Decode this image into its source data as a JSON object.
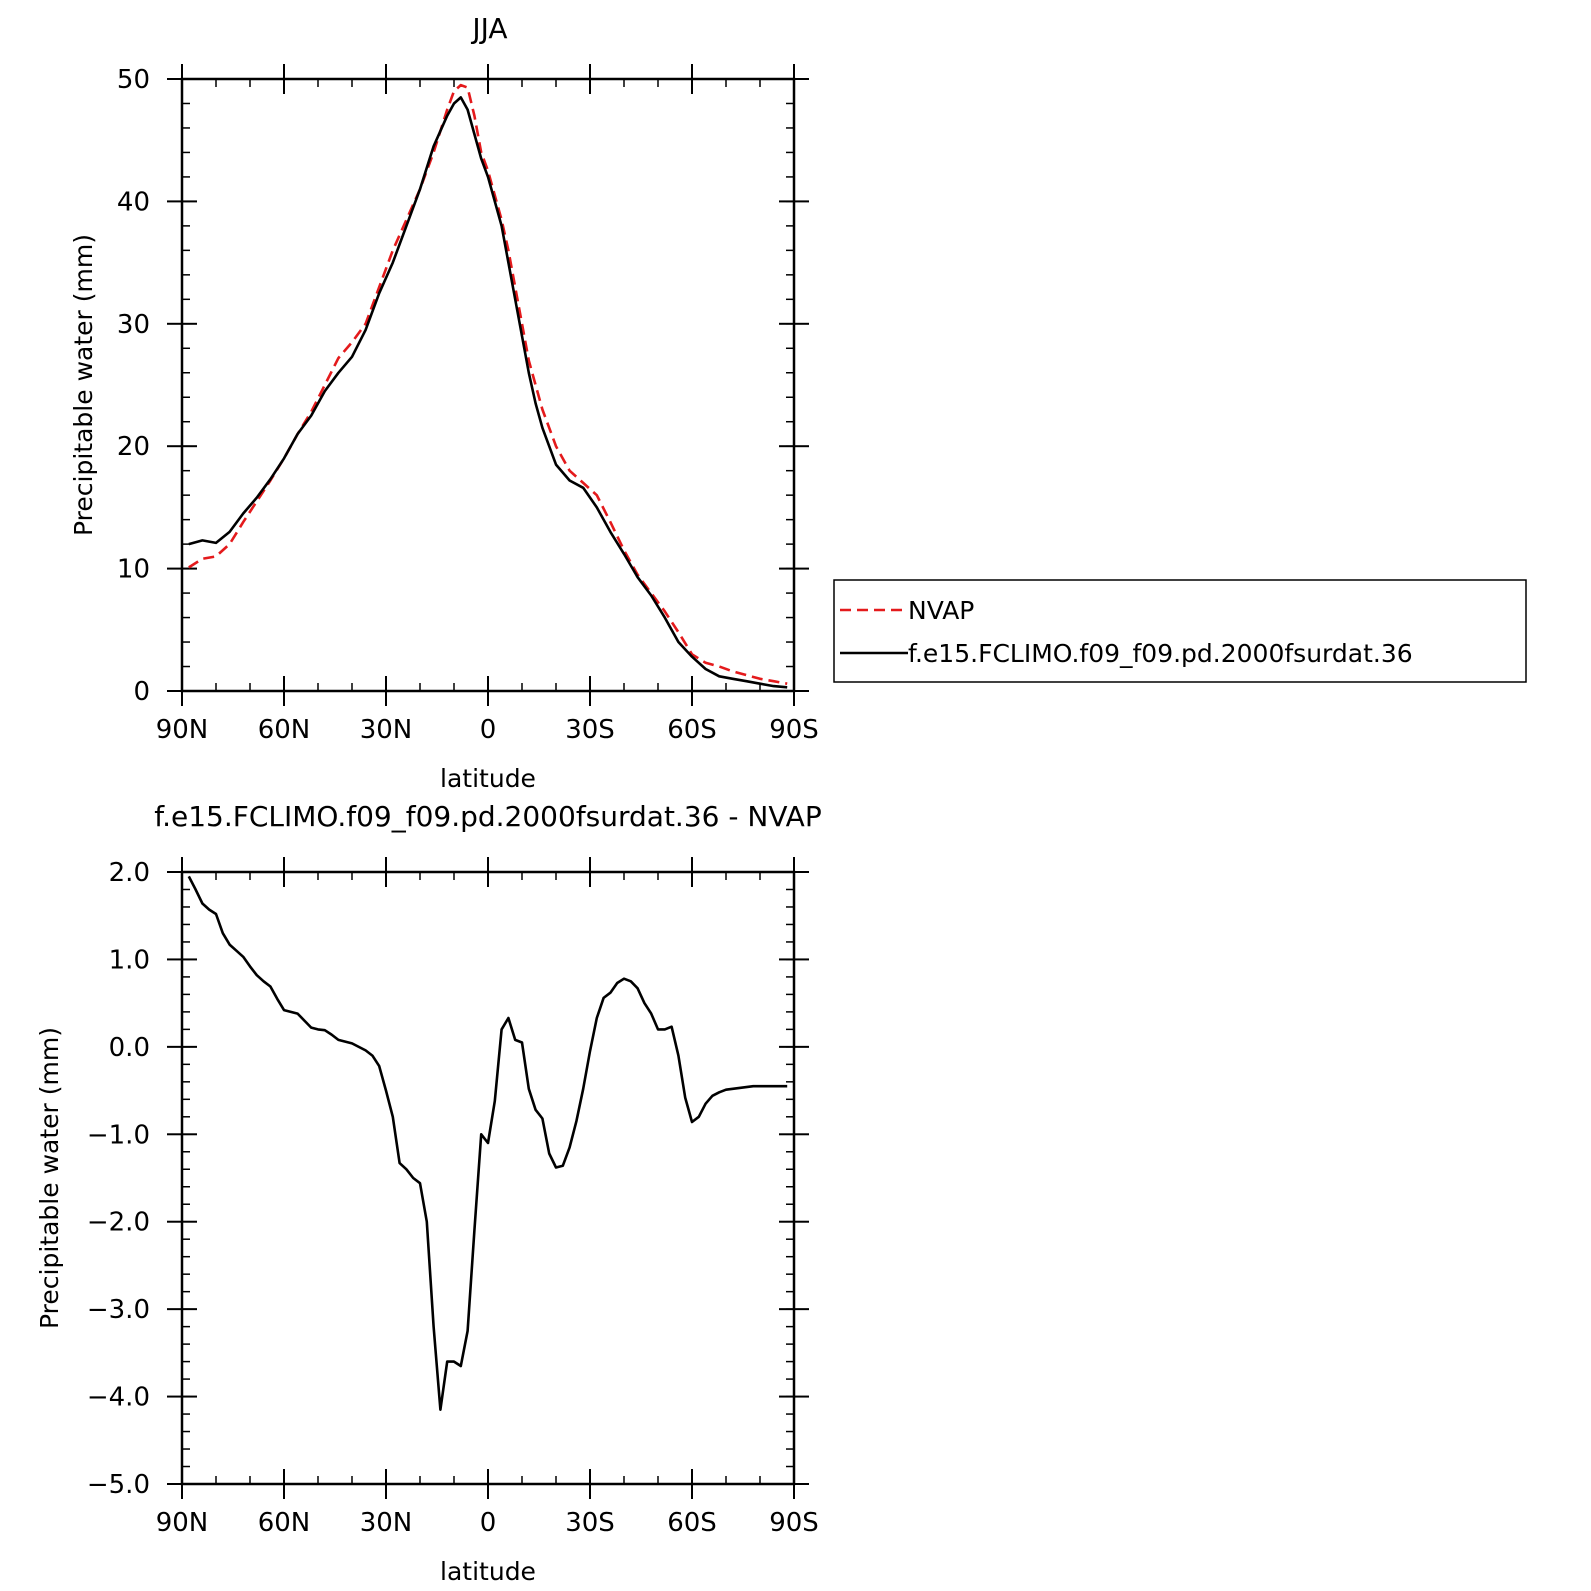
{
  "chart_data": [
    {
      "type": "line",
      "title": "JJA",
      "xlabel": "latitude",
      "ylabel": "Precipitable water (mm)",
      "xlim": [
        -90,
        90
      ],
      "ylim": [
        0,
        50
      ],
      "x_tick_values": [
        -90,
        -60,
        -30,
        0,
        30,
        60,
        90
      ],
      "x_tick_labels": [
        "90N",
        "60N",
        "30N",
        "0",
        "30S",
        "60S",
        "90S"
      ],
      "y_tick_values": [
        0,
        10,
        20,
        30,
        40,
        50
      ],
      "y_tick_labels": [
        "0",
        "10",
        "20",
        "30",
        "40",
        "50"
      ],
      "grid": false,
      "legend": {
        "position": "outside-right"
      },
      "series": [
        {
          "name": "NVAP",
          "color": "#e41a1c",
          "dash": "dashed",
          "x": [
            -88,
            -84,
            -80,
            -76,
            -72,
            -68,
            -64,
            -60,
            -56,
            -52,
            -48,
            -44,
            -40,
            -36,
            -32,
            -28,
            -24,
            -20,
            -16,
            -12,
            -10,
            -8,
            -6,
            -4,
            -2,
            0,
            2,
            4,
            6,
            8,
            10,
            12,
            14,
            16,
            18,
            20,
            24,
            28,
            32,
            36,
            40,
            44,
            48,
            52,
            56,
            60,
            64,
            68,
            72,
            76,
            80,
            84,
            88
          ],
          "y": [
            10.1,
            10.8,
            11.0,
            12.0,
            13.8,
            15.5,
            17.2,
            19.0,
            21.0,
            22.8,
            25.0,
            27.2,
            28.5,
            30.0,
            33.0,
            36.0,
            38.5,
            41.0,
            44.0,
            47.5,
            49.0,
            49.5,
            49.3,
            47.0,
            44.0,
            42.5,
            40.5,
            38.5,
            36.0,
            33.0,
            30.0,
            27.0,
            25.0,
            23.0,
            21.5,
            20.0,
            18.0,
            17.0,
            16.0,
            13.8,
            11.5,
            9.5,
            8.0,
            6.5,
            4.8,
            3.0,
            2.3,
            2.0,
            1.6,
            1.3,
            1.0,
            0.8,
            0.6
          ]
        },
        {
          "name": "f.e15.FCLIMO.f09_f09.pd.2000fsurdat.36",
          "color": "#000000",
          "dash": "solid",
          "x": [
            -88,
            -84,
            -80,
            -76,
            -72,
            -68,
            -64,
            -60,
            -56,
            -52,
            -48,
            -44,
            -40,
            -36,
            -32,
            -28,
            -24,
            -20,
            -16,
            -12,
            -10,
            -8,
            -6,
            -4,
            -2,
            0,
            2,
            4,
            6,
            8,
            10,
            12,
            14,
            16,
            18,
            20,
            24,
            28,
            32,
            36,
            40,
            44,
            48,
            52,
            56,
            60,
            64,
            68,
            72,
            76,
            80,
            84,
            88
          ],
          "y": [
            12.0,
            12.3,
            12.1,
            13.0,
            14.5,
            15.8,
            17.3,
            19.0,
            21.0,
            22.5,
            24.5,
            26.0,
            27.3,
            29.5,
            32.5,
            35.0,
            38.0,
            41.0,
            44.5,
            47.0,
            48.0,
            48.5,
            47.5,
            45.5,
            43.5,
            42.0,
            40.0,
            38.0,
            35.0,
            32.0,
            29.0,
            26.0,
            23.5,
            21.5,
            20.0,
            18.5,
            17.2,
            16.6,
            15.0,
            13.0,
            11.2,
            9.3,
            7.8,
            6.0,
            4.0,
            2.8,
            1.8,
            1.2,
            1.0,
            0.8,
            0.6,
            0.4,
            0.3
          ]
        }
      ]
    },
    {
      "type": "line",
      "title": "f.e15.FCLIMO.f09_f09.pd.2000fsurdat.36 - NVAP",
      "xlabel": "latitude",
      "ylabel": "Precipitable water (mm)",
      "xlim": [
        -90,
        90
      ],
      "ylim": [
        -5.0,
        2.0
      ],
      "x_tick_values": [
        -90,
        -60,
        -30,
        0,
        30,
        60,
        90
      ],
      "x_tick_labels": [
        "90N",
        "60N",
        "30N",
        "0",
        "30S",
        "60S",
        "90S"
      ],
      "y_tick_values": [
        -5.0,
        -4.0,
        -3.0,
        -2.0,
        -1.0,
        0.0,
        1.0,
        2.0
      ],
      "y_tick_labels": [
        "−5.0",
        "−4.0",
        "−3.0",
        "−2.0",
        "−1.0",
        "0.0",
        "1.0",
        "2.0"
      ],
      "grid": false,
      "series": [
        {
          "color": "#000000",
          "dash": "solid",
          "x": [
            -88,
            -86,
            -84,
            -82,
            -80,
            -78,
            -76,
            -74,
            -72,
            -70,
            -68,
            -66,
            -64,
            -62,
            -60,
            -58,
            -56,
            -54,
            -52,
            -50,
            -48,
            -46,
            -44,
            -42,
            -40,
            -38,
            -36,
            -34,
            -32,
            -30,
            -28,
            -26,
            -24,
            -22,
            -20,
            -18,
            -16,
            -14,
            -12,
            -10,
            -8,
            -6,
            -4,
            -2,
            0,
            2,
            4,
            6,
            8,
            10,
            12,
            14,
            16,
            18,
            20,
            22,
            24,
            26,
            28,
            30,
            32,
            34,
            36,
            38,
            40,
            42,
            44,
            46,
            48,
            50,
            52,
            54,
            56,
            58,
            60,
            62,
            64,
            66,
            68,
            70,
            72,
            74,
            76,
            78,
            80,
            82,
            84,
            86,
            88
          ],
          "y": [
            1.95,
            1.8,
            1.64,
            1.57,
            1.52,
            1.3,
            1.17,
            1.1,
            1.03,
            0.92,
            0.82,
            0.75,
            0.69,
            0.55,
            0.42,
            0.4,
            0.38,
            0.3,
            0.22,
            0.2,
            0.19,
            0.14,
            0.08,
            0.06,
            0.04,
            0.0,
            -0.04,
            -0.1,
            -0.22,
            -0.5,
            -0.8,
            -1.33,
            -1.4,
            -1.5,
            -1.56,
            -2.0,
            -3.2,
            -4.15,
            -3.6,
            -3.6,
            -3.65,
            -3.25,
            -2.1,
            -1.0,
            -1.1,
            -0.62,
            0.2,
            0.33,
            0.08,
            0.05,
            -0.48,
            -0.72,
            -0.82,
            -1.22,
            -1.38,
            -1.36,
            -1.15,
            -0.85,
            -0.48,
            -0.05,
            0.33,
            0.56,
            0.62,
            0.73,
            0.78,
            0.75,
            0.67,
            0.5,
            0.38,
            0.2,
            0.2,
            0.23,
            -0.1,
            -0.58,
            -0.86,
            -0.8,
            -0.65,
            -0.56,
            -0.52,
            -0.49,
            -0.48,
            -0.47,
            -0.46,
            -0.45,
            -0.45,
            -0.45,
            -0.45,
            -0.45,
            -0.45
          ]
        }
      ]
    }
  ]
}
